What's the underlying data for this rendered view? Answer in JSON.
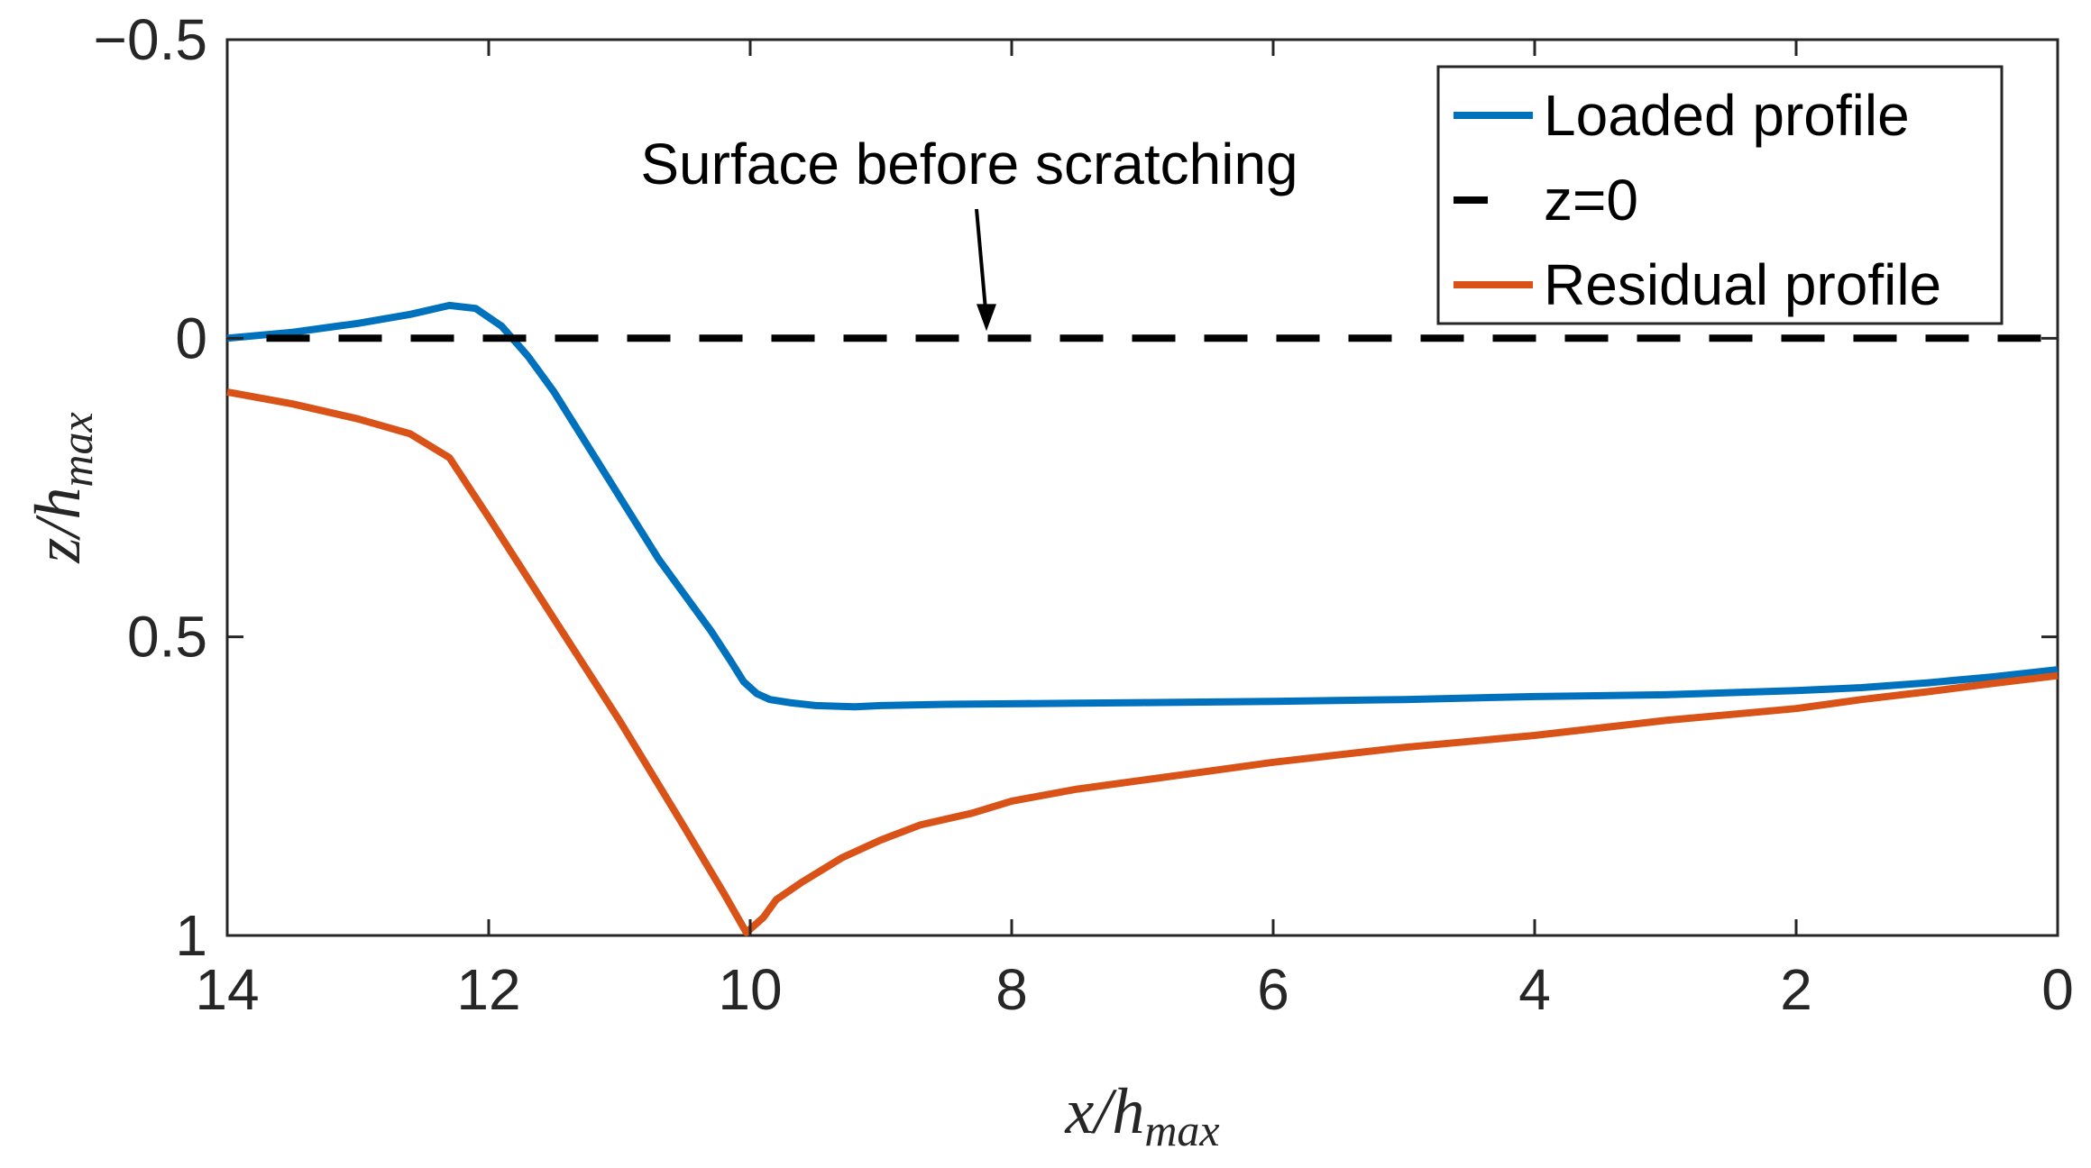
{
  "chart_data": {
    "type": "line",
    "title": "",
    "xlabel_main": "x/h",
    "xlabel_sub": "max",
    "ylabel_main": "z/h",
    "ylabel_sub": "max",
    "xlim": [
      0,
      14
    ],
    "ylim": [
      -0.5,
      1
    ],
    "x_reversed": true,
    "y_reversed": true,
    "x_ticks": [
      14,
      12,
      10,
      8,
      6,
      4,
      2,
      0
    ],
    "x_tick_labels": [
      "14",
      "12",
      "10",
      "8",
      "6",
      "4",
      "2",
      "0"
    ],
    "y_ticks": [
      -0.5,
      0,
      0.5,
      1
    ],
    "y_tick_labels": [
      "−0.5",
      "0",
      "0.5",
      "1"
    ],
    "grid": false,
    "legend_position": "top-right",
    "annotation": {
      "text": "Surface before scratching",
      "points_to": [
        8.2,
        0
      ]
    },
    "series": [
      {
        "name": "Loaded profile",
        "color": "#0072BD",
        "style": "solid",
        "x": [
          14,
          13.5,
          13.0,
          12.6,
          12.3,
          12.1,
          11.9,
          11.7,
          11.5,
          11.3,
          11.1,
          10.9,
          10.7,
          10.5,
          10.3,
          10.15,
          10.05,
          9.95,
          9.85,
          9.7,
          9.5,
          9.2,
          9.0,
          8.5,
          8.0,
          7.5,
          7.0,
          6.0,
          5.0,
          4.0,
          3.0,
          2.0,
          1.5,
          1.0,
          0.5,
          0
        ],
        "y": [
          0.0,
          -0.01,
          -0.025,
          -0.04,
          -0.055,
          -0.05,
          -0.02,
          0.03,
          0.09,
          0.16,
          0.23,
          0.3,
          0.37,
          0.43,
          0.49,
          0.54,
          0.575,
          0.595,
          0.605,
          0.61,
          0.615,
          0.617,
          0.615,
          0.613,
          0.612,
          0.611,
          0.61,
          0.608,
          0.605,
          0.6,
          0.597,
          0.59,
          0.585,
          0.577,
          0.567,
          0.555
        ],
        "linewidth": 8
      },
      {
        "name": "z=0",
        "color": "#000000",
        "style": "dashed",
        "x": [
          13.7,
          0
        ],
        "y": [
          0,
          0
        ],
        "linewidth": 8
      },
      {
        "name": "Residual profile",
        "color": "#D95319",
        "style": "solid",
        "x": [
          14,
          13.5,
          13.0,
          12.6,
          12.3,
          12.0,
          11.5,
          11.0,
          10.5,
          10.2,
          10.03,
          9.9,
          9.8,
          9.6,
          9.3,
          9.0,
          8.7,
          8.3,
          8.0,
          7.5,
          7.0,
          6.5,
          6.0,
          5.0,
          4.0,
          3.0,
          2.0,
          1.5,
          1.0,
          0.5,
          0
        ],
        "y": [
          0.09,
          0.11,
          0.135,
          0.16,
          0.2,
          0.3,
          0.47,
          0.64,
          0.82,
          0.93,
          0.995,
          0.97,
          0.94,
          0.91,
          0.87,
          0.84,
          0.815,
          0.795,
          0.775,
          0.755,
          0.74,
          0.725,
          0.71,
          0.685,
          0.665,
          0.64,
          0.62,
          0.605,
          0.592,
          0.578,
          0.565
        ],
        "linewidth": 8
      }
    ]
  }
}
